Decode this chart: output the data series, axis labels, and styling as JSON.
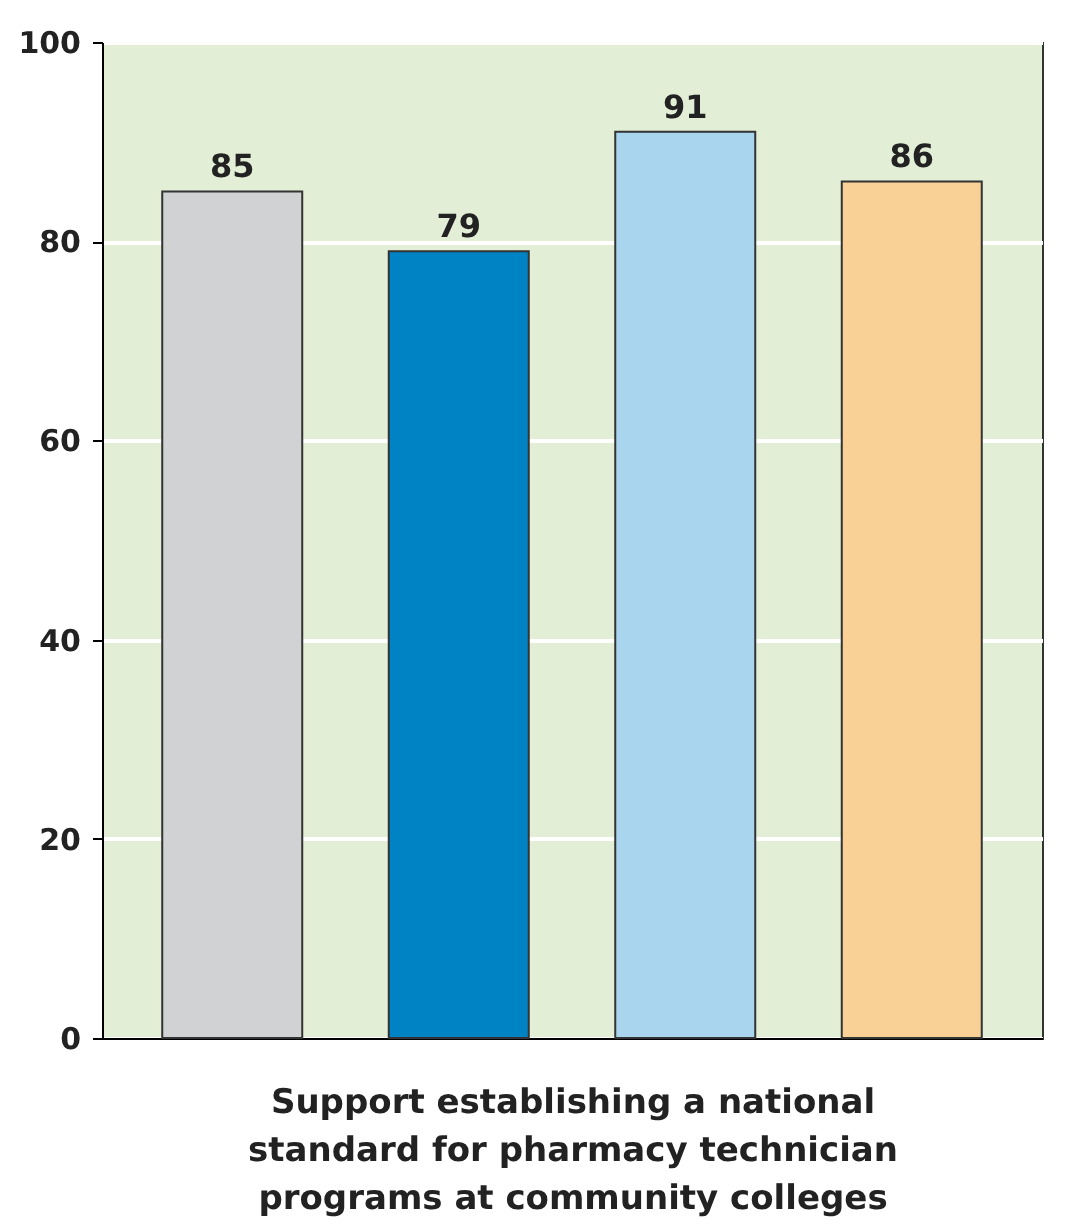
{
  "chart_data": {
    "type": "bar",
    "categories": [
      null,
      null,
      null,
      null
    ],
    "values": [
      85,
      79,
      91,
      86
    ],
    "colors": [
      "#d0d2d4",
      "#0083c4",
      "#a9d6ee",
      "#f9d096"
    ],
    "xlabel": "Support establishing a national standard for pharmacy technician programs at community colleges",
    "ylim": [
      0,
      100
    ],
    "yticks": [
      0,
      20,
      40,
      60,
      80,
      100
    ],
    "grid": "y",
    "data_labels": true
  }
}
